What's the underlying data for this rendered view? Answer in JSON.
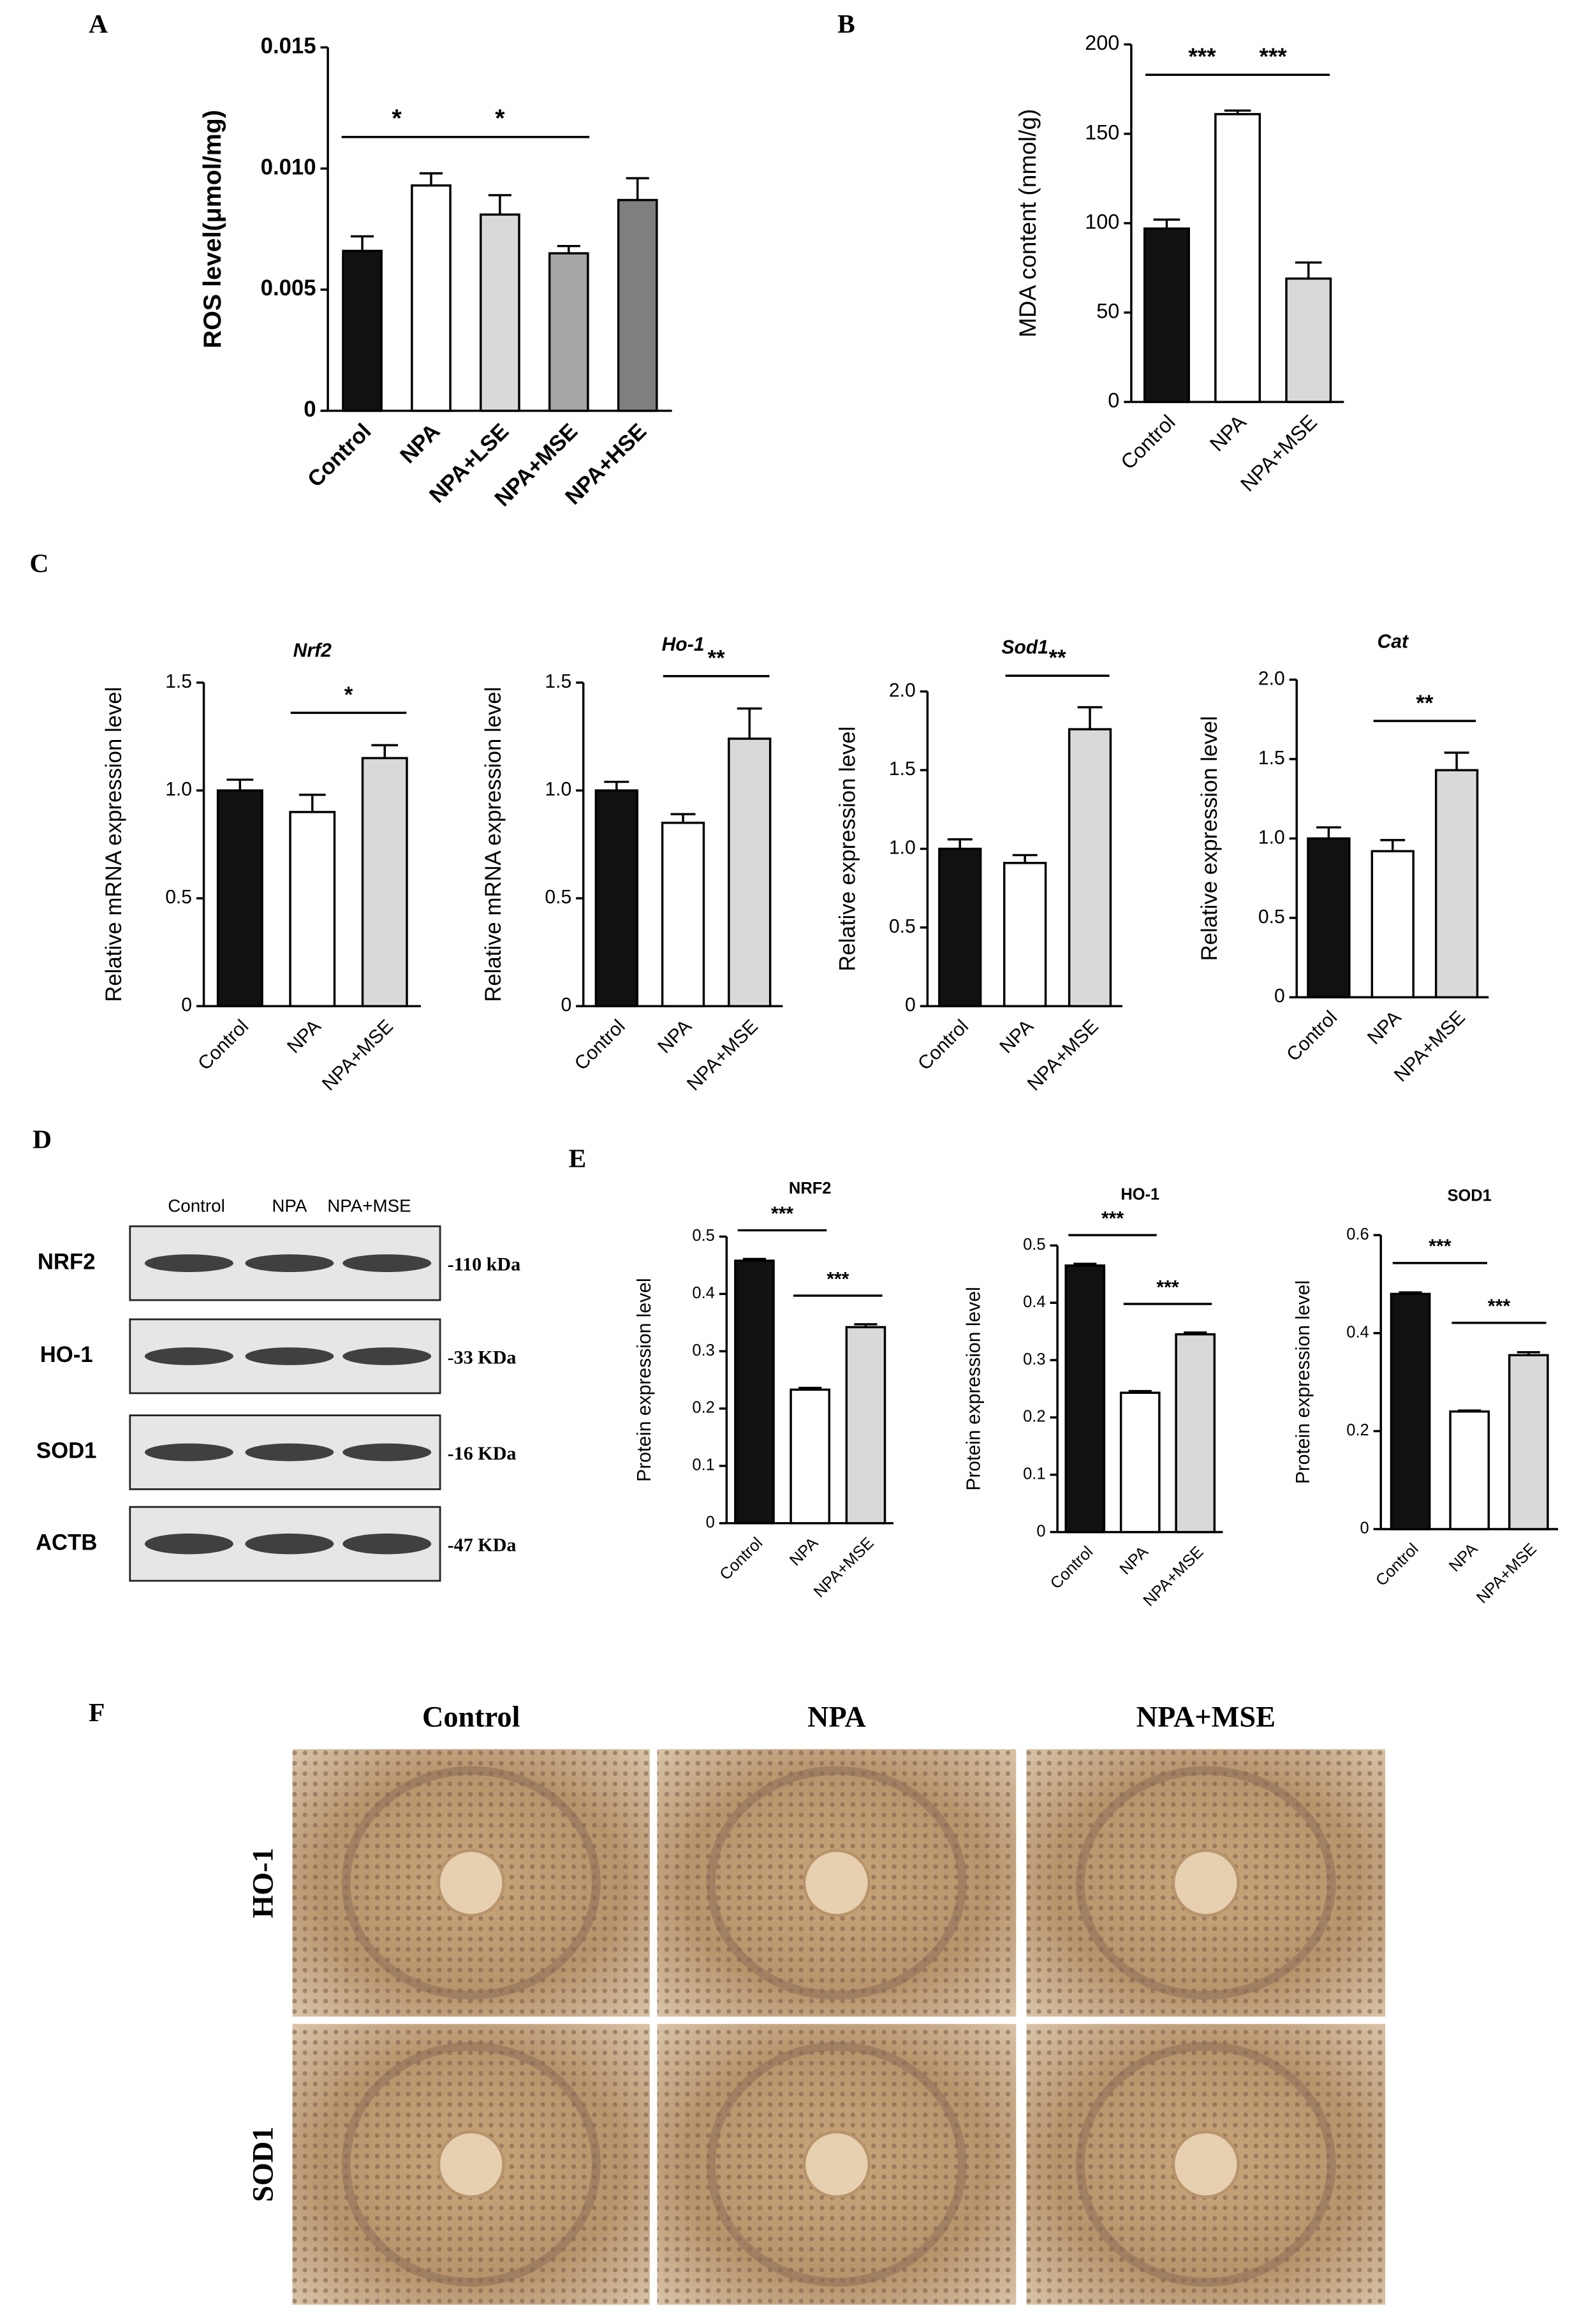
{
  "panel_labels": [
    "A",
    "B",
    "C",
    "D",
    "E",
    "F"
  ],
  "chart_data": [
    {
      "type": "bar",
      "ylabel": "ROS level(μmol/mg)",
      "categories": [
        "Control",
        "NPA",
        "NPA+LSE",
        "NPA+MSE",
        "NPA+HSE"
      ],
      "values": [
        0.0066,
        0.0093,
        0.0081,
        0.0065,
        0.0087
      ],
      "errors": [
        0.0006,
        0.0005,
        0.0008,
        0.0003,
        0.0009
      ],
      "colors": [
        "#111111",
        "#ffffff",
        "#d9d9d9",
        "#a6a6a6",
        "#7f7f7f"
      ],
      "ylim": [
        0,
        0.015
      ],
      "yticks": [
        0,
        0.005,
        {
          "value": 0.01,
          "label": "0.010"
        },
        0.015
      ],
      "annotations": [
        "*",
        "*"
      ]
    },
    {
      "type": "bar",
      "ylabel": "MDA content (nmol/g)",
      "categories": [
        "Control",
        "NPA",
        "NPA+MSE"
      ],
      "values": [
        97,
        161,
        69
      ],
      "errors": [
        5,
        2,
        9
      ],
      "colors": [
        "#111111",
        "#ffffff",
        "#d9d9d9"
      ],
      "ylim": [
        0,
        200
      ],
      "yticks": [
        0,
        50,
        100,
        150,
        200
      ],
      "annotations": [
        "***",
        "***"
      ]
    },
    {
      "type": "bar",
      "title": "Nrf2",
      "ylabel": "Relative mRNA expression level",
      "categories": [
        "Control",
        "NPA",
        "NPA+MSE"
      ],
      "values": [
        1.0,
        0.9,
        1.15
      ],
      "errors": [
        0.05,
        0.08,
        0.06
      ],
      "colors": [
        "#111111",
        "#ffffff",
        "#d9d9d9"
      ],
      "ylim": [
        0,
        1.5
      ],
      "yticks": [
        0,
        0.5,
        {
          "value": 1,
          "label": "1.0"
        },
        1.5
      ],
      "annotations": [
        "*"
      ]
    },
    {
      "type": "bar",
      "title": "Ho-1",
      "ylabel": "Relative mRNA expression level",
      "categories": [
        "Control",
        "NPA",
        "NPA+MSE"
      ],
      "values": [
        1.0,
        0.85,
        1.24
      ],
      "errors": [
        0.04,
        0.04,
        0.14
      ],
      "colors": [
        "#111111",
        "#ffffff",
        "#d9d9d9"
      ],
      "ylim": [
        0,
        1.5
      ],
      "yticks": [
        0,
        0.5,
        {
          "value": 1,
          "label": "1.0"
        },
        1.5
      ],
      "annotations": [
        "**"
      ]
    },
    {
      "type": "bar",
      "title": "Sod1",
      "ylabel": "Relative expression level",
      "categories": [
        "Control",
        "NPA",
        "NPA+MSE"
      ],
      "values": [
        1.0,
        0.91,
        1.76
      ],
      "errors": [
        0.06,
        0.05,
        0.14
      ],
      "colors": [
        "#111111",
        "#ffffff",
        "#d9d9d9"
      ],
      "ylim": [
        0,
        2
      ],
      "yticks": [
        0,
        0.5,
        {
          "value": 1,
          "label": "1.0"
        },
        1.5,
        {
          "value": 2,
          "label": "2.0"
        }
      ],
      "annotations": [
        "**"
      ]
    },
    {
      "type": "bar",
      "title": "Cat",
      "ylabel": "Relative expression level",
      "categories": [
        "Control",
        "NPA",
        "NPA+MSE"
      ],
      "values": [
        1.0,
        0.92,
        1.43
      ],
      "errors": [
        0.07,
        0.07,
        0.11
      ],
      "colors": [
        "#111111",
        "#ffffff",
        "#d9d9d9"
      ],
      "ylim": [
        0,
        2
      ],
      "yticks": [
        0,
        0.5,
        {
          "value": 1,
          "label": "1.0"
        },
        1.5,
        {
          "value": 2,
          "label": "2.0"
        }
      ],
      "annotations": [
        "**"
      ]
    },
    {
      "type": "bar",
      "title": "NRF2",
      "ylabel": "Protein expression level",
      "categories": [
        "Control",
        "NPA",
        "NPA+MSE"
      ],
      "values": [
        0.458,
        0.233,
        0.342
      ],
      "errors": [
        0.003,
        0.003,
        0.005
      ],
      "colors": [
        "#111111",
        "#ffffff",
        "#d9d9d9"
      ],
      "ylim": [
        0,
        0.5
      ],
      "yticks": [
        0,
        0.1,
        0.2,
        0.3,
        0.4,
        0.5
      ],
      "annotations": [
        "***",
        "***"
      ]
    },
    {
      "type": "bar",
      "title": "HO-1",
      "ylabel": "Protein expression level",
      "categories": [
        "Control",
        "NPA",
        "NPA+MSE"
      ],
      "values": [
        0.465,
        0.243,
        0.345
      ],
      "errors": [
        0.003,
        0.003,
        0.003
      ],
      "colors": [
        "#111111",
        "#ffffff",
        "#d9d9d9"
      ],
      "ylim": [
        0,
        0.5
      ],
      "yticks": [
        0,
        0.1,
        0.2,
        0.3,
        0.4,
        0.5
      ],
      "annotations": [
        "***",
        "***"
      ]
    },
    {
      "type": "bar",
      "title": "SOD1",
      "ylabel": "Protein expression level",
      "categories": [
        "Control",
        "NPA",
        "NPA+MSE"
      ],
      "values": [
        0.48,
        0.24,
        0.355
      ],
      "errors": [
        0.003,
        0.002,
        0.006
      ],
      "colors": [
        "#111111",
        "#ffffff",
        "#d9d9d9"
      ],
      "ylim": [
        0,
        0.6
      ],
      "yticks": [
        0,
        0.2,
        0.4,
        0.6
      ],
      "annotations": [
        "***",
        "***"
      ]
    }
  ],
  "western_blot": {
    "columns": [
      "Control",
      "NPA",
      "NPA+MSE"
    ],
    "rows": [
      {
        "protein": "NRF2",
        "size": "-110 kDa"
      },
      {
        "protein": "HO-1",
        "size": "-33 KDa"
      },
      {
        "protein": "SOD1",
        "size": "-16 KDa"
      },
      {
        "protein": "ACTB",
        "size": "-47 KDa"
      }
    ]
  },
  "histology": {
    "columns": [
      "Control",
      "NPA",
      "NPA+MSE"
    ],
    "rows": [
      "HO-1",
      "SOD1"
    ]
  }
}
